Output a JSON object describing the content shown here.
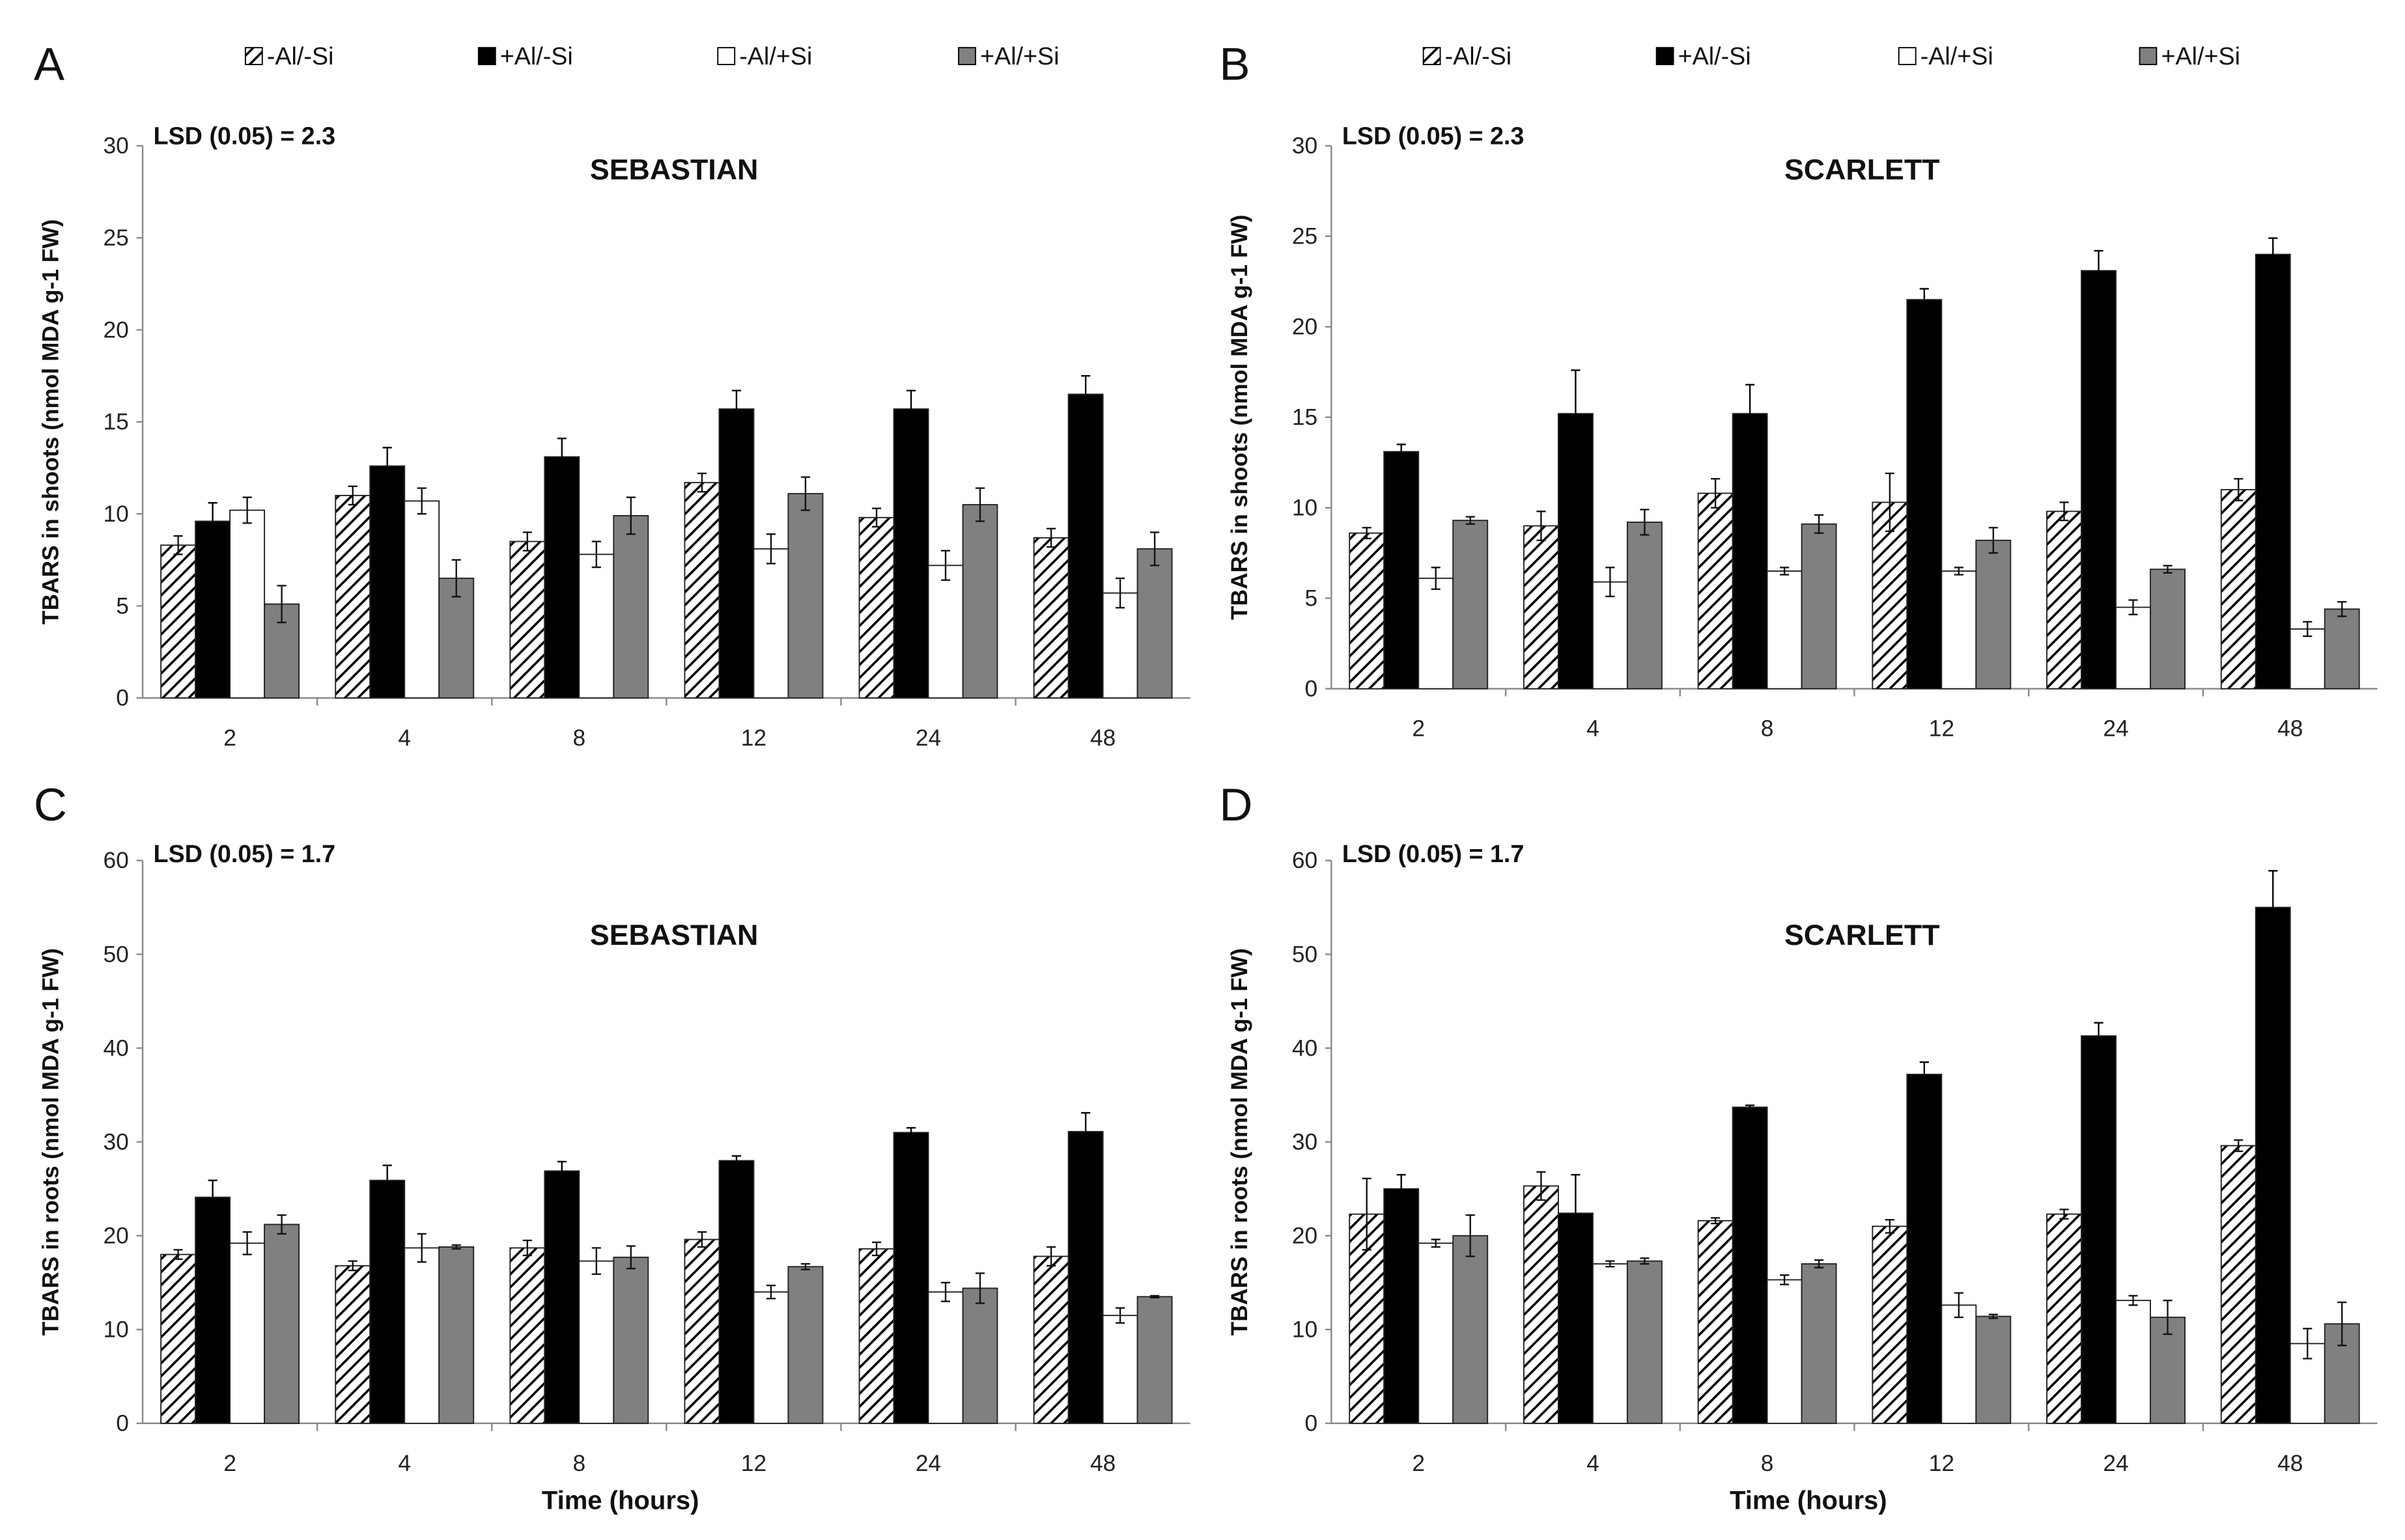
{
  "legend": [
    {
      "label": "-Al/-Si",
      "fill": "hatch"
    },
    {
      "label": "+Al/-Si",
      "fill": "#000000"
    },
    {
      "label": "-Al/+Si",
      "fill": "#ffffff"
    },
    {
      "label": "+Al/+Si",
      "fill": "#808080"
    }
  ],
  "chart_data": [
    {
      "panel": "A",
      "type": "bar",
      "title": "SEBASTIAN",
      "lsd": "LSD (0.05) = 2.3",
      "ylabel": "TBARS in shoots (nmol MDA g-1 FW)",
      "xlabel": "",
      "ylim": [
        0,
        30
      ],
      "yticks": [
        0,
        5,
        10,
        15,
        20,
        25,
        30
      ],
      "categories": [
        "2",
        "4",
        "8",
        "12",
        "24",
        "48"
      ],
      "series": [
        {
          "name": "-Al/-Si",
          "values": [
            8.3,
            11.0,
            8.5,
            11.7,
            9.8,
            8.7
          ],
          "errors": [
            0.5,
            0.5,
            0.5,
            0.5,
            0.5,
            0.5
          ]
        },
        {
          "name": "+Al/-Si",
          "values": [
            9.6,
            12.6,
            13.1,
            15.7,
            15.7,
            16.5
          ],
          "errors": [
            1.0,
            1.0,
            1.0,
            1.0,
            1.0,
            1.0
          ]
        },
        {
          "name": "-Al/+Si",
          "values": [
            10.2,
            10.7,
            7.8,
            8.1,
            7.2,
            5.7
          ],
          "errors": [
            0.7,
            0.7,
            0.7,
            0.8,
            0.8,
            0.8
          ]
        },
        {
          "name": "+Al/+Si",
          "values": [
            5.1,
            6.5,
            9.9,
            11.1,
            10.5,
            8.1
          ],
          "errors": [
            1.0,
            1.0,
            1.0,
            0.9,
            0.9,
            0.9
          ]
        }
      ]
    },
    {
      "panel": "B",
      "type": "bar",
      "title": "SCARLETT",
      "lsd": "LSD (0.05) = 2.3",
      "ylabel": "TBARS in shoots (nmol MDA g-1 FW)",
      "xlabel": "",
      "ylim": [
        0,
        30
      ],
      "yticks": [
        0,
        5,
        10,
        15,
        20,
        25,
        30
      ],
      "categories": [
        "2",
        "4",
        "8",
        "12",
        "24",
        "48"
      ],
      "series": [
        {
          "name": "-Al/-Si",
          "values": [
            8.6,
            9.0,
            10.8,
            10.3,
            9.8,
            11.0
          ],
          "errors": [
            0.3,
            0.8,
            0.8,
            1.6,
            0.5,
            0.6
          ]
        },
        {
          "name": "+Al/-Si",
          "values": [
            13.1,
            15.2,
            15.2,
            21.5,
            23.1,
            24.0
          ],
          "errors": [
            0.4,
            2.4,
            1.6,
            0.6,
            1.1,
            0.9
          ]
        },
        {
          "name": "-Al/+Si",
          "values": [
            6.1,
            5.9,
            6.5,
            6.5,
            4.5,
            3.3
          ],
          "errors": [
            0.6,
            0.8,
            0.2,
            0.2,
            0.4,
            0.4
          ]
        },
        {
          "name": "+Al/+Si",
          "values": [
            9.3,
            9.2,
            9.1,
            8.2,
            6.6,
            4.4
          ],
          "errors": [
            0.2,
            0.7,
            0.5,
            0.7,
            0.2,
            0.4
          ]
        }
      ]
    },
    {
      "panel": "C",
      "type": "bar",
      "title": "SEBASTIAN",
      "lsd": "LSD (0.05) = 1.7",
      "ylabel": "TBARS in roots (nmol MDA g-1 FW)",
      "xlabel": "Time (hours)",
      "ylim": [
        0,
        60
      ],
      "yticks": [
        0,
        10,
        20,
        30,
        40,
        50,
        60
      ],
      "categories": [
        "2",
        "4",
        "8",
        "12",
        "24",
        "48"
      ],
      "series": [
        {
          "name": "-Al/-Si",
          "values": [
            18.0,
            16.8,
            18.7,
            19.6,
            18.6,
            17.8
          ],
          "errors": [
            0.5,
            0.5,
            0.8,
            0.8,
            0.7,
            1.0
          ]
        },
        {
          "name": "+Al/-Si",
          "values": [
            24.1,
            25.9,
            26.9,
            28.0,
            31.0,
            31.1
          ],
          "errors": [
            1.8,
            1.6,
            1.0,
            0.5,
            0.5,
            2.0
          ]
        },
        {
          "name": "-Al/+Si",
          "values": [
            19.2,
            18.7,
            17.3,
            14.0,
            14.0,
            11.5
          ],
          "errors": [
            1.2,
            1.5,
            1.4,
            0.7,
            1.0,
            0.8
          ]
        },
        {
          "name": "+Al/+Si",
          "values": [
            21.2,
            18.8,
            17.7,
            16.7,
            14.4,
            13.5
          ],
          "errors": [
            1.0,
            0.2,
            1.2,
            0.3,
            1.6,
            0.1
          ]
        }
      ]
    },
    {
      "panel": "D",
      "type": "bar",
      "title": "SCARLETT",
      "lsd": "LSD (0.05) = 1.7",
      "ylabel": "TBARS in roots (nmol MDA g-1 FW)",
      "xlabel": "Time (hours)",
      "ylim": [
        0,
        60
      ],
      "yticks": [
        0,
        10,
        20,
        30,
        40,
        50,
        60
      ],
      "categories": [
        "2",
        "4",
        "8",
        "12",
        "24",
        "48"
      ],
      "series": [
        {
          "name": "-Al/-Si",
          "values": [
            22.3,
            25.3,
            21.6,
            21.0,
            22.3,
            29.6
          ],
          "errors": [
            3.8,
            1.5,
            0.3,
            0.7,
            0.5,
            0.6
          ]
        },
        {
          "name": "+Al/-Si",
          "values": [
            25.0,
            22.4,
            33.7,
            37.2,
            41.3,
            55.0
          ],
          "errors": [
            1.5,
            4.1,
            0.2,
            1.3,
            1.4,
            3.9
          ]
        },
        {
          "name": "-Al/+Si",
          "values": [
            19.2,
            17.0,
            15.3,
            12.6,
            13.1,
            8.5
          ],
          "errors": [
            0.4,
            0.3,
            0.5,
            1.3,
            0.5,
            1.6
          ]
        },
        {
          "name": "+Al/+Si",
          "values": [
            20.0,
            17.3,
            17.0,
            11.4,
            11.3,
            10.6
          ],
          "errors": [
            2.2,
            0.3,
            0.4,
            0.2,
            1.8,
            2.3
          ]
        }
      ]
    }
  ]
}
